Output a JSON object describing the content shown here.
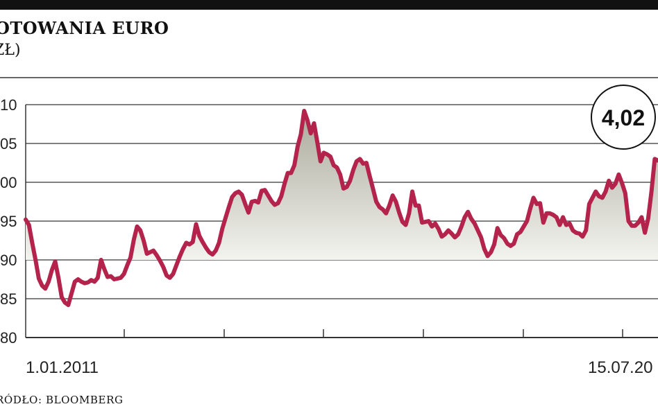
{
  "header": {
    "title": "OTOWANIA EURO",
    "subtitle": "ZŁ)"
  },
  "source": "RÓDŁO: BLOOMBERG",
  "colors": {
    "line": "#b4234c",
    "fill_top": "#a9a99b",
    "fill_bottom": "#f3f3ef",
    "grid": "#333333",
    "topbar": "#111111"
  },
  "chart_data": {
    "type": "area",
    "title": "OTOWANIA EURO",
    "ylabel": "ZŁ)",
    "y_tick_labels": [
      "10",
      "05",
      "00",
      "95",
      "90",
      "85",
      "80"
    ],
    "x_labels": [
      "1.01.2011",
      "15.07.20"
    ],
    "ylim": [
      3.8,
      4.1
    ],
    "baseline": 3.9,
    "grid": "horizontal",
    "callout": "4,02",
    "series": [
      {
        "values": [
          3.952,
          3.945,
          3.922,
          3.9,
          3.876,
          3.867,
          3.863,
          3.872,
          3.887,
          3.898,
          3.877,
          3.852,
          3.845,
          3.842,
          3.857,
          3.872,
          3.875,
          3.872,
          3.87,
          3.871,
          3.874,
          3.872,
          3.877,
          3.9,
          3.888,
          3.878,
          3.879,
          3.875,
          3.876,
          3.877,
          3.882,
          3.893,
          3.903,
          3.926,
          3.943,
          3.938,
          3.925,
          3.908,
          3.91,
          3.912,
          3.906,
          3.899,
          3.891,
          3.88,
          3.877,
          3.882,
          3.893,
          3.904,
          3.914,
          3.922,
          3.92,
          3.923,
          3.946,
          3.931,
          3.923,
          3.916,
          3.91,
          3.907,
          3.912,
          3.922,
          3.94,
          3.954,
          3.968,
          3.981,
          3.986,
          3.988,
          3.984,
          3.972,
          3.961,
          3.975,
          3.976,
          3.974,
          3.989,
          3.99,
          3.983,
          3.976,
          3.971,
          3.973,
          3.982,
          3.998,
          4.012,
          4.012,
          4.022,
          4.046,
          4.062,
          4.092,
          4.08,
          4.063,
          4.076,
          4.052,
          4.027,
          4.038,
          4.036,
          4.033,
          4.022,
          4.019,
          4.01,
          3.992,
          3.994,
          4.002,
          4.016,
          4.027,
          4.03,
          4.024,
          4.025,
          4.008,
          3.992,
          3.975,
          3.968,
          3.965,
          3.96,
          3.97,
          3.983,
          3.975,
          3.961,
          3.949,
          3.945,
          3.96,
          3.988,
          3.97,
          3.97,
          3.948,
          3.949,
          3.95,
          3.943,
          3.947,
          3.94,
          3.93,
          3.933,
          3.938,
          3.934,
          3.929,
          3.933,
          3.943,
          3.955,
          3.962,
          3.953,
          3.947,
          3.938,
          3.929,
          3.914,
          3.905,
          3.91,
          3.92,
          3.941,
          3.932,
          3.928,
          3.921,
          3.918,
          3.921,
          3.933,
          3.936,
          3.943,
          3.95,
          3.966,
          3.98,
          3.972,
          3.973,
          3.948,
          3.96,
          3.96,
          3.958,
          3.955,
          3.945,
          3.955,
          3.945,
          3.947,
          3.938,
          3.935,
          3.934,
          3.93,
          3.938,
          3.972,
          3.98,
          3.988,
          3.982,
          3.98,
          3.988,
          4.002,
          3.993,
          3.998,
          4.01,
          3.999,
          3.986,
          3.95,
          3.944,
          3.944,
          3.948,
          3.955,
          3.935,
          3.953,
          3.988,
          4.03,
          4.028
        ]
      }
    ]
  }
}
